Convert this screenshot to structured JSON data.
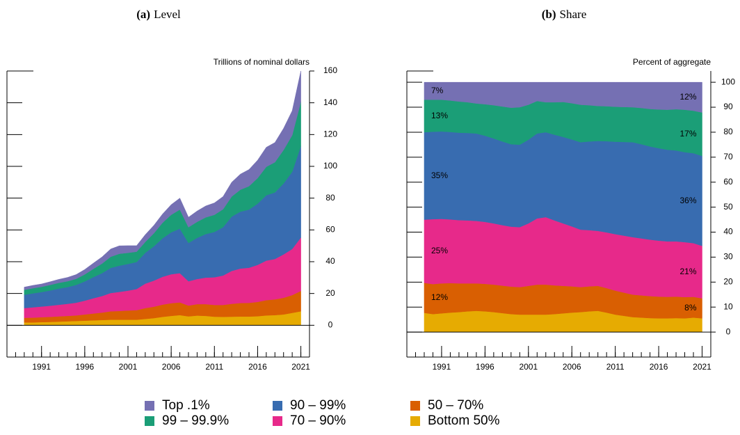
{
  "chart_data": [
    {
      "type": "area",
      "stacked": true,
      "panel": "(a)",
      "title": "Level",
      "ylabel": "Trillions of nominal dollars",
      "legend": "bottom",
      "x": [
        1989,
        1990,
        1991,
        1992,
        1993,
        1994,
        1995,
        1996,
        1997,
        1998,
        1999,
        2000,
        2001,
        2002,
        2003,
        2004,
        2005,
        2006,
        2007,
        2008,
        2009,
        2010,
        2011,
        2012,
        2013,
        2014,
        2015,
        2016,
        2017,
        2018,
        2019,
        2020,
        2021
      ],
      "xlim": [
        1987,
        2022
      ],
      "xticks": [
        1991,
        1996,
        2001,
        2006,
        2011,
        2016,
        2021
      ],
      "xminorticks": [
        1988,
        1989,
        1990,
        1991,
        1992,
        1993,
        1994,
        1995,
        1996,
        1997,
        1998,
        1999,
        2000,
        2001,
        2002,
        2003,
        2004,
        2005,
        2006,
        2007,
        2008,
        2009,
        2010,
        2011,
        2012,
        2013,
        2014,
        2015,
        2016,
        2017,
        2018,
        2019,
        2020,
        2021
      ],
      "ylim": [
        -20,
        160
      ],
      "yticks": [
        0,
        20,
        40,
        60,
        80,
        100,
        120,
        140,
        160
      ],
      "series": [
        {
          "name": "Top .1%",
          "color": "#7570b3",
          "values": [
            1.7,
            1.8,
            1.8,
            2.0,
            2.2,
            2.4,
            2.7,
            3.1,
            3.6,
            4.2,
            4.9,
            5.0,
            4.5,
            3.8,
            4.6,
            5.0,
            5.5,
            6.4,
            7.2,
            6.3,
            6.8,
            7.2,
            7.5,
            8.0,
            9.0,
            9.8,
            10.5,
            11.3,
            12.3,
            12.4,
            13.6,
            15.4,
            19.4
          ]
        },
        {
          "name": "99 – 99.9%",
          "color": "#1b9e77",
          "values": [
            3.1,
            3.2,
            3.3,
            3.5,
            3.6,
            3.7,
            3.8,
            4.4,
            5.2,
            6.0,
            7.0,
            7.5,
            7.0,
            6.5,
            6.8,
            8.2,
            9.8,
            11.0,
            12.0,
            9.9,
            10.1,
            10.5,
            10.8,
            11.3,
            12.6,
            13.8,
            14.7,
            16.1,
            17.9,
            19.0,
            21.1,
            23.0,
            27.8
          ]
        },
        {
          "name": "90 – 99%",
          "color": "#386cb0",
          "values": [
            8.4,
            8.8,
            9.1,
            9.6,
            10.2,
            10.5,
            11.2,
            12.1,
            13.3,
            14.4,
            15.8,
            16.5,
            16.8,
            17.0,
            19.4,
            21.6,
            24.2,
            26.4,
            28.0,
            24.1,
            25.9,
            27.4,
            28.5,
            30.4,
            34.2,
            35.8,
            36.6,
            38.5,
            41.1,
            41.9,
            44.6,
            48.6,
            57.6
          ]
        },
        {
          "name": "70 – 90%",
          "color": "#e7298a",
          "values": [
            6.1,
            6.5,
            6.7,
            7.0,
            7.3,
            7.6,
            8.0,
            8.7,
            9.6,
            10.4,
            11.5,
            12.0,
            12.5,
            13.3,
            15.4,
            16.4,
            17.5,
            18.2,
            18.4,
            15.3,
            15.8,
            16.7,
            17.4,
            18.5,
            20.7,
            21.7,
            22.1,
            23.3,
            24.9,
            25.4,
            27.3,
            29.0,
            33.6
          ]
        },
        {
          "name": "50 – 70%",
          "color": "#d95f02",
          "values": [
            2.9,
            3.0,
            3.1,
            3.2,
            3.3,
            3.4,
            3.5,
            3.9,
            4.3,
            4.7,
            5.3,
            5.5,
            5.8,
            6.0,
            6.8,
            7.2,
            7.7,
            8.0,
            8.0,
            6.8,
            7.2,
            7.4,
            7.4,
            7.5,
            8.1,
            8.5,
            8.6,
            9.0,
            9.6,
            9.9,
            10.5,
            11.2,
            12.8
          ]
        },
        {
          "name": "Bottom 50%",
          "color": "#e6ab02",
          "values": [
            1.8,
            1.8,
            2.0,
            2.1,
            2.3,
            2.5,
            2.7,
            2.9,
            3.1,
            3.3,
            3.5,
            3.5,
            3.5,
            3.5,
            4.0,
            4.5,
            5.3,
            5.9,
            6.4,
            5.6,
            6.1,
            5.9,
            5.4,
            5.3,
            5.4,
            5.5,
            5.5,
            5.7,
            6.2,
            6.4,
            6.8,
            7.8,
            8.8
          ]
        }
      ]
    },
    {
      "type": "area",
      "stacked": true,
      "panel": "(b)",
      "title": "Share",
      "ylabel": "Percent of aggregate",
      "x": [
        1989,
        1990,
        1991,
        1992,
        1993,
        1994,
        1995,
        1996,
        1997,
        1998,
        1999,
        2000,
        2001,
        2002,
        2003,
        2004,
        2005,
        2006,
        2007,
        2008,
        2009,
        2010,
        2011,
        2012,
        2013,
        2014,
        2015,
        2016,
        2017,
        2018,
        2019,
        2020,
        2021
      ],
      "xlim": [
        1987,
        2022
      ],
      "xticks": [
        1991,
        1996,
        2001,
        2006,
        2011,
        2016,
        2021
      ],
      "xminorticks": [
        1988,
        1989,
        1990,
        1991,
        1992,
        1993,
        1994,
        1995,
        1996,
        1997,
        1998,
        1999,
        2000,
        2001,
        2002,
        2003,
        2004,
        2005,
        2006,
        2007,
        2008,
        2009,
        2010,
        2011,
        2012,
        2013,
        2014,
        2015,
        2016,
        2017,
        2018,
        2019,
        2020,
        2021
      ],
      "ylim": [
        -10,
        104.5
      ],
      "yticks": [
        0,
        10,
        20,
        30,
        40,
        50,
        60,
        70,
        80,
        90,
        100
      ],
      "series": [
        {
          "color": "#7570b3",
          "values": [
            7,
            7,
            7,
            7.3,
            7.7,
            8,
            8.5,
            8.8,
            9.2,
            9.7,
            10.2,
            10,
            9,
            7.5,
            8,
            8,
            7.9,
            8.4,
            9,
            9.2,
            9.5,
            9.6,
            9.8,
            9.9,
            10,
            10.3,
            10.7,
            10.9,
            11,
            10.8,
            11,
            11.4,
            12.1
          ],
          "value_labels": [
            "7%",
            null,
            null,
            null,
            null,
            null,
            null,
            null,
            null,
            null,
            null,
            null,
            null,
            null,
            null,
            null,
            null,
            null,
            null,
            null,
            null,
            null,
            null,
            null,
            null,
            null,
            null,
            null,
            null,
            null,
            null,
            null,
            "12%"
          ]
        },
        {
          "color": "#1b9e77",
          "values": [
            13,
            12.8,
            12.7,
            12.6,
            12.5,
            12.3,
            12,
            12.6,
            13.3,
            14,
            14.6,
            15,
            14,
            13,
            12,
            13,
            14,
            14.5,
            15,
            14.5,
            14,
            14,
            14,
            14,
            14,
            14.5,
            15,
            15.5,
            16,
            16.5,
            17,
            17,
            17.4
          ],
          "value_labels": [
            "13%",
            null,
            null,
            null,
            null,
            null,
            null,
            null,
            null,
            null,
            null,
            null,
            null,
            null,
            null,
            null,
            null,
            null,
            null,
            null,
            null,
            null,
            null,
            null,
            null,
            null,
            null,
            null,
            null,
            null,
            null,
            null,
            "17%"
          ]
        },
        {
          "color": "#386cb0",
          "values": [
            35,
            35,
            35,
            35,
            35,
            35,
            35,
            34.5,
            34,
            33.5,
            33,
            33,
            33.5,
            34,
            34,
            34.3,
            34.6,
            34.8,
            35,
            35.5,
            36,
            36.5,
            37,
            37.5,
            38,
            37.7,
            37.3,
            37,
            36.7,
            36.4,
            36,
            36,
            36
          ],
          "value_labels": [
            "35%",
            null,
            null,
            null,
            null,
            null,
            null,
            null,
            null,
            null,
            null,
            null,
            null,
            null,
            null,
            null,
            null,
            null,
            null,
            null,
            null,
            null,
            null,
            null,
            null,
            null,
            null,
            null,
            null,
            null,
            null,
            null,
            "36%"
          ]
        },
        {
          "color": "#e7298a",
          "values": [
            25.3,
            26,
            25.8,
            25.5,
            25.3,
            25.2,
            25,
            24.8,
            24.5,
            24.2,
            24,
            24,
            25,
            26.5,
            27,
            26,
            25,
            24,
            23,
            22.5,
            22,
            22.3,
            22.6,
            22.8,
            23,
            22.8,
            22.6,
            22.4,
            22.2,
            22.1,
            22,
            21.5,
            21
          ],
          "value_labels": [
            "25%",
            null,
            null,
            null,
            null,
            null,
            null,
            null,
            null,
            null,
            null,
            null,
            null,
            null,
            null,
            null,
            null,
            null,
            null,
            null,
            null,
            null,
            null,
            null,
            null,
            null,
            null,
            null,
            null,
            null,
            null,
            null,
            "21%"
          ]
        },
        {
          "color": "#d95f02",
          "values": [
            12,
            12,
            12,
            11.8,
            11.5,
            11.2,
            11,
            11,
            11,
            11,
            11,
            11,
            11.5,
            12,
            12,
            11.5,
            11,
            10.5,
            10,
            10,
            10,
            9.8,
            9.6,
            9.3,
            9,
            8.9,
            8.8,
            8.7,
            8.6,
            8.6,
            8.5,
            8.3,
            8
          ],
          "value_labels": [
            "12%",
            null,
            null,
            null,
            null,
            null,
            null,
            null,
            null,
            null,
            null,
            null,
            null,
            null,
            null,
            null,
            null,
            null,
            null,
            null,
            null,
            null,
            null,
            null,
            null,
            null,
            null,
            null,
            null,
            null,
            null,
            null,
            "8%"
          ]
        },
        {
          "color": "#e6ab02",
          "values": [
            7.7,
            7.2,
            7.5,
            7.8,
            8,
            8.3,
            8.5,
            8.3,
            8,
            7.6,
            7.2,
            7,
            7,
            7,
            7,
            7.2,
            7.5,
            7.8,
            8,
            8.3,
            8.5,
            7.8,
            7,
            6.5,
            6,
            5.8,
            5.6,
            5.5,
            5.5,
            5.6,
            5.5,
            5.8,
            5.5
          ]
        }
      ]
    }
  ]
}
